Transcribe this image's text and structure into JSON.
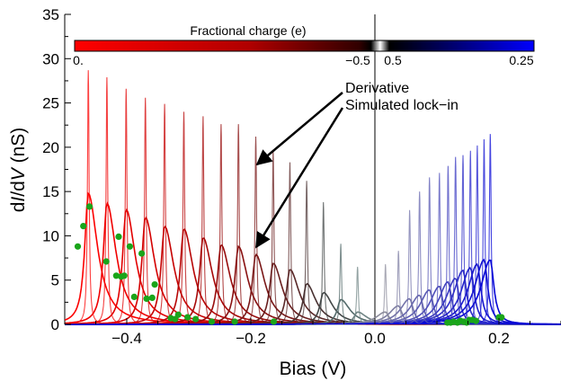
{
  "chart_data": {
    "type": "line",
    "title": "",
    "xlabel": "Bias (V)",
    "ylabel": "dI/dV (nS)",
    "ylabel_parts": [
      "d",
      "I",
      "/d",
      "V",
      "  (nS)"
    ],
    "xlim": [
      -0.5,
      0.3
    ],
    "ylim": [
      0,
      35
    ],
    "x_ticks": [
      -0.4,
      -0.2,
      0.0,
      0.2
    ],
    "x_tick_labels": [
      "−0.4",
      "−0.2",
      "0.0",
      "0.2"
    ],
    "y_ticks": [
      0,
      5,
      10,
      15,
      20,
      25,
      30,
      35
    ],
    "y_tick_labels": [
      "0",
      "5",
      "10",
      "15",
      "20",
      "25",
      "30",
      "35"
    ],
    "grid": false,
    "colorbar": {
      "title": "Fractional charge (e)",
      "tick_labels": [
        "0.",
        "−0.5",
        "0.5",
        "0.25"
      ],
      "colors": {
        "left": "#ff0000",
        "center_left": "#000000",
        "center_right": "#000000",
        "right": "#0000ff"
      }
    },
    "annotations": [
      {
        "text": "Derivative",
        "points_to": {
          "x": -0.198,
          "y": 17.5
        }
      },
      {
        "text": "Simulated lock−in",
        "points_to": {
          "x": -0.198,
          "y": 8.0
        }
      }
    ],
    "series": [
      {
        "kind": "derivative",
        "x": [
          -0.462,
          -0.432,
          -0.401,
          -0.37,
          -0.339,
          -0.308,
          -0.277,
          -0.248,
          -0.22,
          -0.192,
          -0.164,
          -0.137,
          -0.11,
          -0.083,
          -0.055,
          -0.028,
          0.017,
          0.038,
          0.056,
          0.072,
          0.088,
          0.104,
          0.118,
          0.13,
          0.142,
          0.154,
          0.165,
          0.176,
          0.186
        ],
        "y": [
          28.7,
          27.9,
          26.6,
          25.6,
          24.9,
          24.0,
          23.5,
          22.6,
          22.6,
          21.2,
          19.7,
          18.3,
          16.2,
          13.8,
          9.1,
          6.5,
          6.8,
          8.3,
          12.9,
          15.0,
          16.6,
          17.1,
          17.9,
          18.9,
          19.1,
          19.6,
          20.2,
          20.9,
          21.5
        ]
      },
      {
        "kind": "simulated_lockin",
        "x": [
          -0.462,
          -0.432,
          -0.401,
          -0.37,
          -0.339,
          -0.308,
          -0.277,
          -0.248,
          -0.22,
          -0.192,
          -0.164,
          -0.137,
          -0.11,
          -0.083,
          -0.055,
          -0.028,
          0.017,
          0.038,
          0.056,
          0.072,
          0.088,
          0.104,
          0.118,
          0.13,
          0.142,
          0.154,
          0.165,
          0.176,
          0.186
        ],
        "y": [
          14.8,
          13.7,
          13.0,
          12.1,
          11.1,
          10.8,
          9.8,
          9.0,
          8.8,
          7.9,
          6.9,
          6.2,
          4.6,
          3.6,
          2.8,
          1.4,
          1.4,
          2.1,
          2.9,
          3.3,
          3.9,
          4.3,
          4.8,
          5.2,
          6.1,
          6.4,
          6.8,
          7.3,
          7.3
        ]
      },
      {
        "kind": "measured",
        "color": "#1aa51a",
        "x": [
          -0.479,
          -0.47,
          -0.46,
          -0.433,
          -0.417,
          -0.413,
          -0.409,
          -0.404,
          -0.395,
          -0.388,
          -0.376,
          -0.368,
          -0.359,
          -0.355,
          -0.329,
          -0.322,
          -0.317,
          -0.302,
          -0.289,
          -0.263,
          -0.226,
          -0.163,
          0.117,
          0.122,
          0.127,
          0.133,
          0.138,
          0.143,
          0.148,
          0.152,
          0.157,
          0.163,
          0.2,
          0.204
        ],
        "y": [
          8.8,
          11.1,
          13.3,
          7.1,
          5.5,
          9.9,
          5.4,
          5.5,
          8.8,
          3.1,
          8.0,
          2.9,
          3.0,
          4.5,
          0.7,
          0.6,
          1.1,
          0.8,
          0.6,
          0.3,
          0.3,
          0.3,
          0.2,
          0.2,
          0.3,
          0.2,
          0.4,
          0.3,
          0.2,
          0.5,
          0.5,
          0.4,
          0.8,
          0.8
        ]
      }
    ]
  }
}
